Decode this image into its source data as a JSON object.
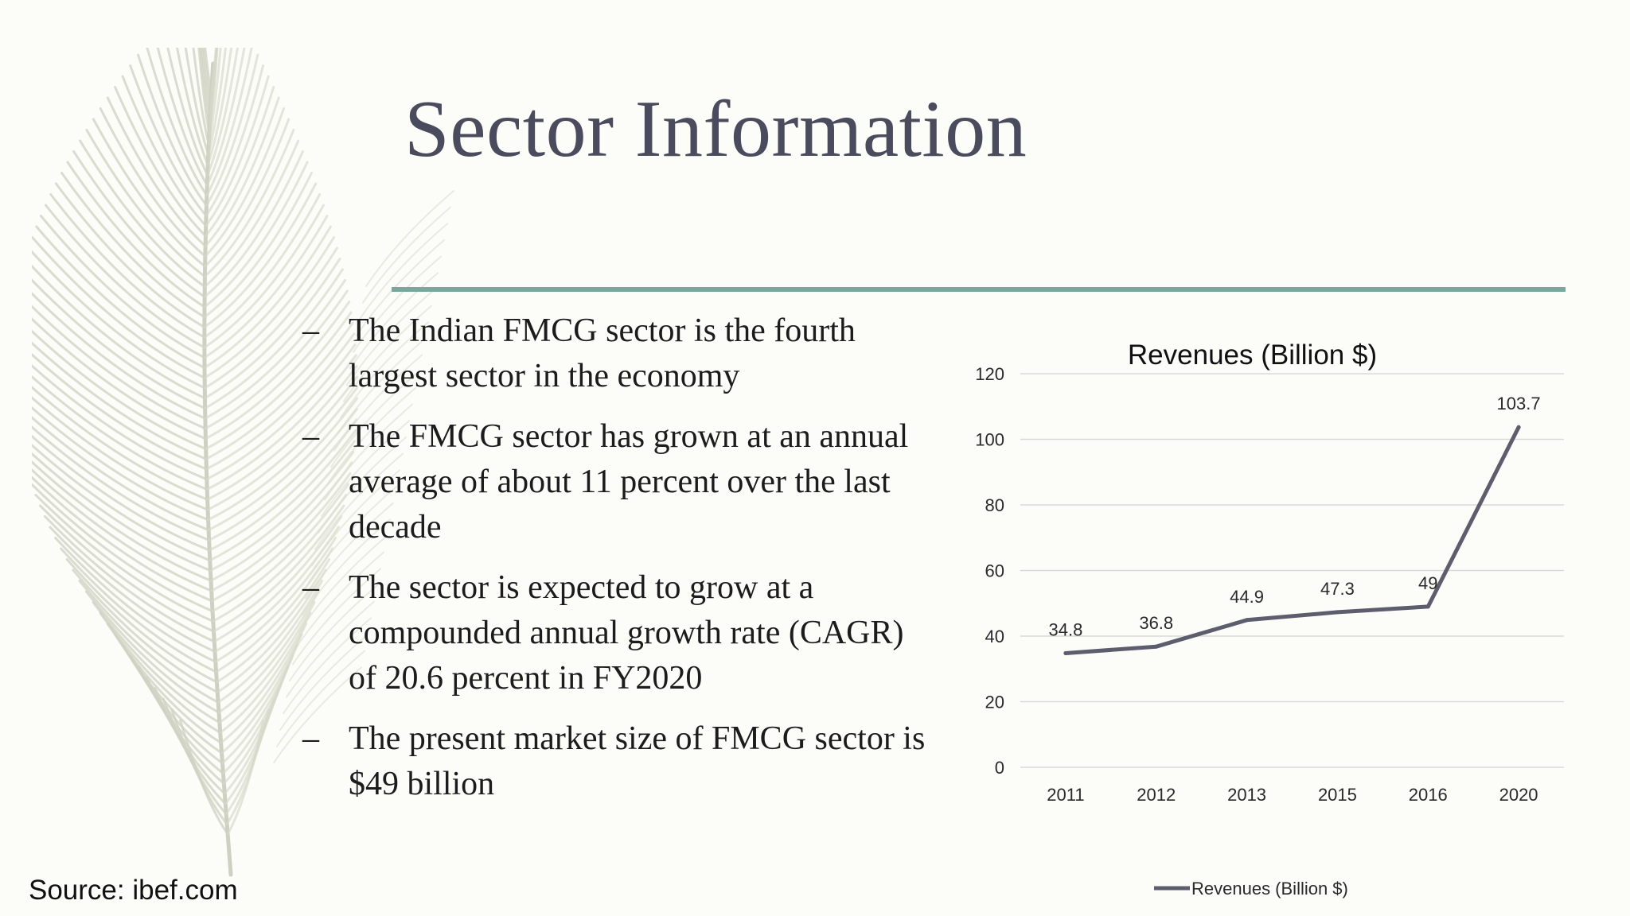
{
  "slide": {
    "title": "Sector Information",
    "bullets": [
      {
        "dash": "–",
        "text": "The Indian FMCG sector is the fourth largest sector in the economy"
      },
      {
        "dash": "–",
        "text": "The FMCG sector has grown at an annual average of about 11 percent over the last decade"
      },
      {
        "dash": "–",
        "text": "The sector is expected to grow at a compounded annual growth rate (CAGR) of 20.6 percent in FY2020"
      },
      {
        "dash": "–",
        "text": "The present market size of FMCG sector is $49 billion"
      }
    ],
    "source": "Source: ibef.com",
    "accent_color": "#7da69f",
    "title_color": "#4a4b5c"
  },
  "chart_data": {
    "type": "line",
    "title": "Revenues (Billion $)",
    "categories": [
      "2011",
      "2012",
      "2013",
      "2015",
      "2016",
      "2020"
    ],
    "series": [
      {
        "name": "Revenues (Billion $)",
        "values": [
          34.8,
          36.8,
          44.9,
          47.3,
          49,
          103.7
        ],
        "color": "#5e5d6e"
      }
    ],
    "ylim": [
      0,
      120
    ],
    "yticks": [
      0,
      20,
      40,
      60,
      80,
      100,
      120
    ],
    "grid": true,
    "legend_position": "bottom",
    "data_labels": true
  }
}
